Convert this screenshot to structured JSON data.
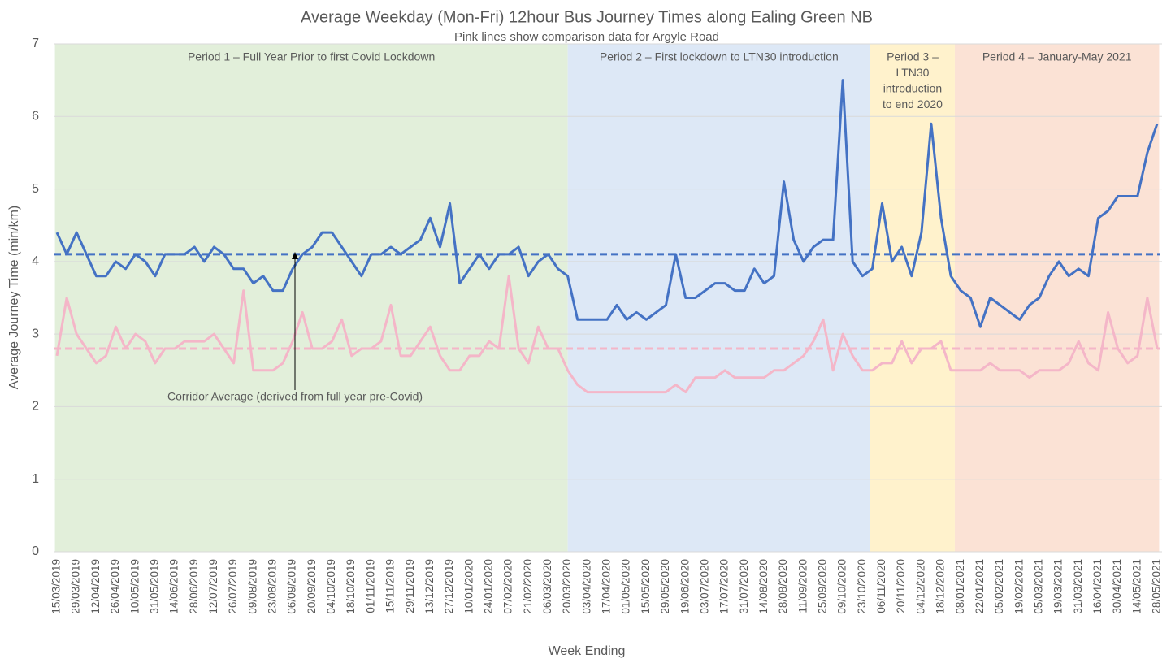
{
  "chart_data": {
    "type": "line",
    "title": "Average Weekday (Mon-Fri) 12hour Bus Journey Times along Ealing Green NB",
    "subtitle": "Pink lines show comparison data for Argyle Road",
    "y_label": "Average Journey Time (min/km)",
    "x_label": "Week Ending",
    "annotation": "Corridor Average (derived from full year pre-Covid)",
    "ylim": [
      0,
      7
    ],
    "yticks": [
      0,
      1,
      2,
      3,
      4,
      5,
      6,
      7
    ],
    "grid": true,
    "categories": [
      "15/03/2019",
      null,
      "29/03/2019",
      null,
      "12/04/2019",
      null,
      "26/04/2019",
      null,
      "10/05/2019",
      null,
      "31/05/2019",
      null,
      "14/06/2019",
      null,
      "28/06/2019",
      null,
      "12/07/2019",
      null,
      "26/07/2019",
      null,
      "09/08/2019",
      null,
      "23/08/2019",
      null,
      "06/09/2019",
      null,
      "20/09/2019",
      null,
      "04/10/2019",
      null,
      "18/10/2019",
      null,
      "01/11/2019",
      null,
      "15/11/2019",
      null,
      "29/11/2019",
      null,
      "13/12/2019",
      null,
      "27/12/2019",
      null,
      "10/01/2020",
      null,
      "24/01/2020",
      null,
      "07/02/2020",
      null,
      "21/02/2020",
      null,
      "06/03/2020",
      null,
      "20/03/2020",
      null,
      "03/04/2020",
      null,
      "17/04/2020",
      null,
      "01/05/2020",
      null,
      "15/05/2020",
      null,
      "29/05/2020",
      null,
      "19/06/2020",
      null,
      "03/07/2020",
      null,
      "17/07/2020",
      null,
      "31/07/2020",
      null,
      "14/08/2020",
      null,
      "28/08/2020",
      null,
      "11/09/2020",
      null,
      "25/09/2020",
      null,
      "09/10/2020",
      null,
      "23/10/2020",
      null,
      "06/11/2020",
      null,
      "20/11/2020",
      null,
      "04/12/2020",
      null,
      "18/12/2020",
      null,
      "08/01/2021",
      null,
      "22/01/2021",
      null,
      "05/02/2021",
      null,
      "19/02/2021",
      null,
      "05/03/2021",
      null,
      "19/03/2021",
      null,
      "31/03/2021",
      null,
      "16/04/2021",
      null,
      "30/04/2021",
      null,
      "14/05/2021",
      null,
      "28/05/2021"
    ],
    "series": [
      {
        "color": "#f4b6c8",
        "values": [
          2.7,
          3.5,
          3.0,
          2.8,
          2.6,
          2.7,
          3.1,
          2.8,
          3.0,
          2.9,
          2.6,
          2.8,
          2.8,
          2.9,
          2.9,
          2.9,
          3.0,
          2.8,
          2.6,
          3.6,
          2.5,
          2.5,
          2.5,
          2.6,
          2.9,
          3.3,
          2.8,
          2.8,
          2.9,
          3.2,
          2.7,
          2.8,
          2.8,
          2.9,
          3.4,
          2.7,
          2.7,
          2.9,
          3.1,
          2.7,
          2.5,
          2.5,
          2.7,
          2.7,
          2.9,
          2.8,
          3.8,
          2.8,
          2.6,
          3.1,
          2.8,
          2.8,
          2.5,
          2.3,
          2.2,
          2.2,
          2.2,
          2.2,
          2.2,
          2.2,
          2.2,
          2.2,
          2.2,
          2.3,
          2.2,
          2.4,
          2.4,
          2.4,
          2.5,
          2.4,
          2.4,
          2.4,
          2.4,
          2.5,
          2.5,
          2.6,
          2.7,
          2.9,
          3.2,
          2.5,
          3.0,
          2.7,
          2.5,
          2.5,
          2.6,
          2.6,
          2.9,
          2.6,
          2.8,
          2.8,
          2.9,
          2.5,
          2.5,
          2.5,
          2.5,
          2.6,
          2.5,
          2.5,
          2.5,
          2.4,
          2.5,
          2.5,
          2.5,
          2.6,
          2.9,
          2.6,
          2.5,
          3.3,
          2.8,
          2.6,
          2.7,
          3.5,
          2.8
        ]
      },
      {
        "color": "#4472c4",
        "values": [
          4.4,
          4.1,
          4.4,
          4.1,
          3.8,
          3.8,
          4.0,
          3.9,
          4.1,
          4.0,
          3.8,
          4.1,
          4.1,
          4.1,
          4.2,
          4.0,
          4.2,
          4.1,
          3.9,
          3.9,
          3.7,
          3.8,
          3.6,
          3.6,
          3.9,
          4.1,
          4.2,
          4.4,
          4.4,
          4.2,
          4.0,
          3.8,
          4.1,
          4.1,
          4.2,
          4.1,
          4.2,
          4.3,
          4.6,
          4.2,
          4.8,
          3.7,
          3.9,
          4.1,
          3.9,
          4.1,
          4.1,
          4.2,
          3.8,
          4.0,
          4.1,
          3.9,
          3.8,
          3.2,
          3.2,
          3.2,
          3.2,
          3.4,
          3.2,
          3.3,
          3.2,
          3.3,
          3.4,
          4.1,
          3.5,
          3.5,
          3.6,
          3.7,
          3.7,
          3.6,
          3.6,
          3.9,
          3.7,
          3.8,
          5.1,
          4.3,
          4.0,
          4.2,
          4.3,
          4.3,
          6.5,
          4.0,
          3.8,
          3.9,
          4.8,
          4.0,
          4.2,
          3.8,
          4.4,
          5.9,
          4.6,
          3.8,
          3.6,
          3.5,
          3.1,
          3.5,
          3.4,
          3.3,
          3.2,
          3.4,
          3.5,
          3.8,
          4.0,
          3.8,
          3.9,
          3.8,
          4.6,
          4.7,
          4.9,
          4.9,
          4.9,
          5.5,
          5.9
        ]
      }
    ],
    "average_lines": [
      {
        "value": 4.1,
        "color": "#4472c4"
      },
      {
        "value": 2.8,
        "color": "#f4b6c8"
      }
    ],
    "periods": [
      {
        "lines": [
          "Period 1 – Full Year Prior to first Covid Lockdown"
        ],
        "span": [
          -0.2,
          52
        ],
        "color": "#e2efda"
      },
      {
        "lines": [
          "Period 2 – First lockdown to LTN30 introduction"
        ],
        "span": [
          52,
          82.8
        ],
        "color": "#dde8f6"
      },
      {
        "lines": [
          "Period 3 –",
          "LTN30",
          "introduction",
          "to end 2020"
        ],
        "span": [
          82.8,
          91.4
        ],
        "color": "#fff2cc"
      },
      {
        "lines": [
          "Period 4 – January-May 2021"
        ],
        "span": [
          91.4,
          112.2
        ],
        "color": "#fbe2d5"
      }
    ]
  }
}
